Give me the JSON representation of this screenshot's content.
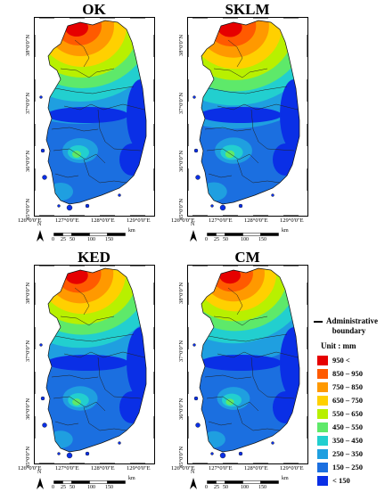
{
  "panels": [
    {
      "title": "OK",
      "intensity": 1.0
    },
    {
      "title": "SKLM",
      "intensity": 1.05
    },
    {
      "title": "KED",
      "intensity": 0.98
    },
    {
      "title": "CM",
      "intensity": 0.92
    }
  ],
  "axes": {
    "lat_labels": [
      "38°0'0\"N",
      "37°0'0\"N",
      "36°0'0\"N",
      "35°0'0\"N"
    ],
    "lon_labels": [
      "126°0'0\"E",
      "127°0'0\"E",
      "128°0'0\"E",
      "129°0'0\"E"
    ]
  },
  "north_label": "N",
  "scale": {
    "ticks": [
      "0",
      "25",
      "50",
      "100",
      "150"
    ],
    "unit": "km"
  },
  "legend": {
    "boundary_label_1": "Administrative",
    "boundary_label_2": "boundary",
    "unit_title": "Unit : mm",
    "classes": [
      {
        "label": "950  <",
        "color": "#e60000"
      },
      {
        "label": "850 – 950",
        "color": "#ff5a00"
      },
      {
        "label": "750 – 850",
        "color": "#ff9900"
      },
      {
        "label": "650 – 750",
        "color": "#ffd000"
      },
      {
        "label": "550 – 650",
        "color": "#b8f000"
      },
      {
        "label": "450 – 550",
        "color": "#5ee96a"
      },
      {
        "label": "350 – 450",
        "color": "#22cfcf"
      },
      {
        "label": "250 – 350",
        "color": "#1f9fe0"
      },
      {
        "label": "150 – 250",
        "color": "#1b6fe0"
      },
      {
        "label": "< 150",
        "color": "#0a2fe6"
      }
    ]
  }
}
